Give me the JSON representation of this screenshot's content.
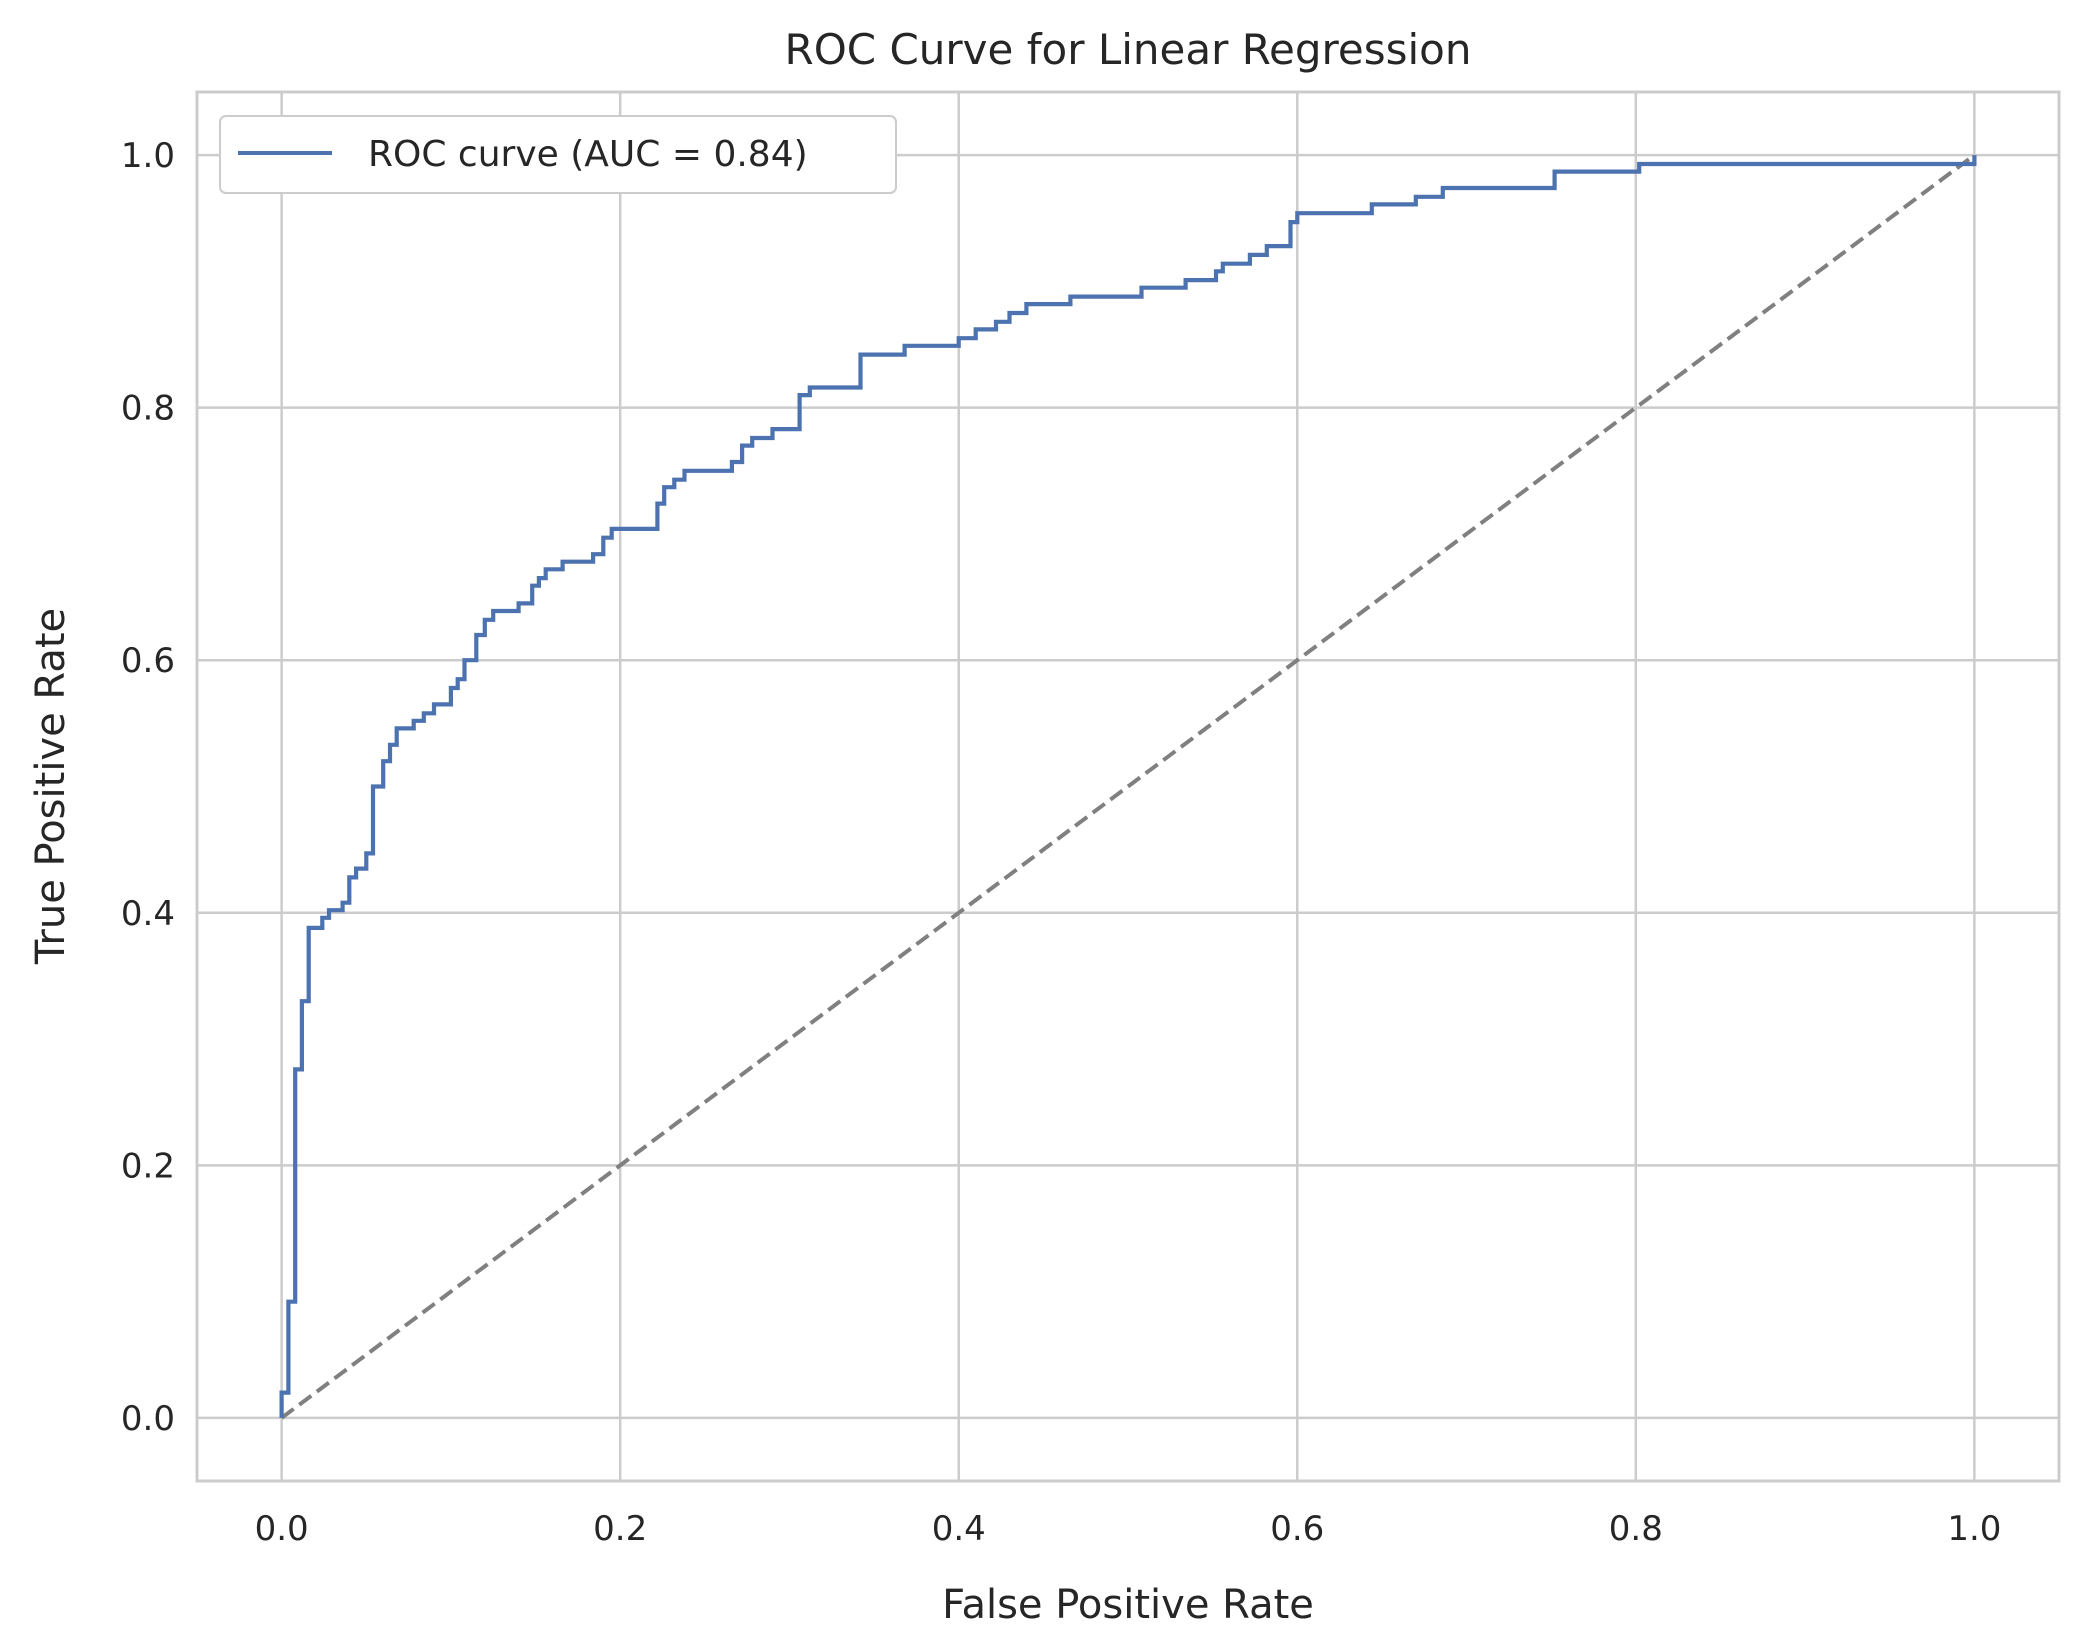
{
  "chart_data": {
    "type": "line",
    "title": "ROC Curve for Linear Regression",
    "xlabel": "False Positive Rate",
    "ylabel": "True Positive Rate",
    "xlim": [
      -0.05,
      1.05
    ],
    "ylim": [
      -0.05,
      1.05
    ],
    "xticks": [
      0.0,
      0.2,
      0.4,
      0.6,
      0.8,
      1.0
    ],
    "yticks": [
      0.0,
      0.2,
      0.4,
      0.6,
      0.8,
      1.0
    ],
    "xtick_labels": [
      "0.0",
      "0.2",
      "0.4",
      "0.6",
      "0.8",
      "1.0"
    ],
    "ytick_labels": [
      "0.0",
      "0.2",
      "0.4",
      "0.6",
      "0.8",
      "1.0"
    ],
    "grid": true,
    "legend": {
      "placement": "upper-left",
      "entries": [
        "ROC curve (AUC = 0.84)"
      ]
    },
    "series": [
      {
        "name": "ROC curve (AUC = 0.84)",
        "color": "#4c72b0",
        "style": "step",
        "points": [
          [
            0.0,
            0.0
          ],
          [
            0.0,
            0.02
          ],
          [
            0.004,
            0.02
          ],
          [
            0.004,
            0.092
          ],
          [
            0.008,
            0.092
          ],
          [
            0.008,
            0.276
          ],
          [
            0.012,
            0.276
          ],
          [
            0.012,
            0.33
          ],
          [
            0.016,
            0.33
          ],
          [
            0.016,
            0.388
          ],
          [
            0.024,
            0.388
          ],
          [
            0.024,
            0.396
          ],
          [
            0.028,
            0.396
          ],
          [
            0.028,
            0.402
          ],
          [
            0.036,
            0.402
          ],
          [
            0.036,
            0.408
          ],
          [
            0.04,
            0.408
          ],
          [
            0.04,
            0.428
          ],
          [
            0.044,
            0.428
          ],
          [
            0.044,
            0.435
          ],
          [
            0.05,
            0.435
          ],
          [
            0.05,
            0.447
          ],
          [
            0.054,
            0.447
          ],
          [
            0.054,
            0.5
          ],
          [
            0.06,
            0.5
          ],
          [
            0.06,
            0.52
          ],
          [
            0.064,
            0.52
          ],
          [
            0.064,
            0.533
          ],
          [
            0.068,
            0.533
          ],
          [
            0.068,
            0.546
          ],
          [
            0.078,
            0.546
          ],
          [
            0.078,
            0.552
          ],
          [
            0.084,
            0.552
          ],
          [
            0.084,
            0.558
          ],
          [
            0.09,
            0.558
          ],
          [
            0.09,
            0.565
          ],
          [
            0.1,
            0.565
          ],
          [
            0.1,
            0.578
          ],
          [
            0.104,
            0.578
          ],
          [
            0.104,
            0.585
          ],
          [
            0.108,
            0.585
          ],
          [
            0.108,
            0.6
          ],
          [
            0.115,
            0.6
          ],
          [
            0.115,
            0.62
          ],
          [
            0.12,
            0.62
          ],
          [
            0.12,
            0.632
          ],
          [
            0.125,
            0.632
          ],
          [
            0.125,
            0.639
          ],
          [
            0.14,
            0.639
          ],
          [
            0.14,
            0.645
          ],
          [
            0.148,
            0.645
          ],
          [
            0.148,
            0.659
          ],
          [
            0.152,
            0.659
          ],
          [
            0.152,
            0.665
          ],
          [
            0.156,
            0.665
          ],
          [
            0.156,
            0.672
          ],
          [
            0.166,
            0.672
          ],
          [
            0.166,
            0.678
          ],
          [
            0.184,
            0.678
          ],
          [
            0.184,
            0.684
          ],
          [
            0.19,
            0.684
          ],
          [
            0.19,
            0.697
          ],
          [
            0.195,
            0.697
          ],
          [
            0.195,
            0.704
          ],
          [
            0.222,
            0.704
          ],
          [
            0.222,
            0.724
          ],
          [
            0.226,
            0.724
          ],
          [
            0.226,
            0.737
          ],
          [
            0.232,
            0.737
          ],
          [
            0.232,
            0.743
          ],
          [
            0.238,
            0.743
          ],
          [
            0.238,
            0.75
          ],
          [
            0.266,
            0.75
          ],
          [
            0.266,
            0.757
          ],
          [
            0.272,
            0.757
          ],
          [
            0.272,
            0.77
          ],
          [
            0.278,
            0.77
          ],
          [
            0.278,
            0.776
          ],
          [
            0.29,
            0.776
          ],
          [
            0.29,
            0.783
          ],
          [
            0.306,
            0.783
          ],
          [
            0.306,
            0.81
          ],
          [
            0.312,
            0.81
          ],
          [
            0.312,
            0.816
          ],
          [
            0.342,
            0.816
          ],
          [
            0.342,
            0.842
          ],
          [
            0.368,
            0.842
          ],
          [
            0.368,
            0.849
          ],
          [
            0.4,
            0.849
          ],
          [
            0.4,
            0.855
          ],
          [
            0.41,
            0.855
          ],
          [
            0.41,
            0.862
          ],
          [
            0.422,
            0.862
          ],
          [
            0.422,
            0.868
          ],
          [
            0.43,
            0.868
          ],
          [
            0.43,
            0.875
          ],
          [
            0.44,
            0.875
          ],
          [
            0.44,
            0.882
          ],
          [
            0.466,
            0.882
          ],
          [
            0.466,
            0.888
          ],
          [
            0.508,
            0.888
          ],
          [
            0.508,
            0.895
          ],
          [
            0.534,
            0.895
          ],
          [
            0.534,
            0.901
          ],
          [
            0.552,
            0.901
          ],
          [
            0.552,
            0.908
          ],
          [
            0.556,
            0.908
          ],
          [
            0.556,
            0.914
          ],
          [
            0.572,
            0.914
          ],
          [
            0.572,
            0.921
          ],
          [
            0.582,
            0.921
          ],
          [
            0.582,
            0.928
          ],
          [
            0.596,
            0.928
          ],
          [
            0.596,
            0.947
          ],
          [
            0.6,
            0.947
          ],
          [
            0.6,
            0.954
          ],
          [
            0.644,
            0.954
          ],
          [
            0.644,
            0.961
          ],
          [
            0.67,
            0.961
          ],
          [
            0.67,
            0.967
          ],
          [
            0.686,
            0.967
          ],
          [
            0.686,
            0.974
          ],
          [
            0.752,
            0.974
          ],
          [
            0.752,
            0.987
          ],
          [
            0.802,
            0.987
          ],
          [
            0.802,
            0.993
          ],
          [
            1.0,
            0.993
          ],
          [
            1.0,
            1.0
          ]
        ]
      },
      {
        "name": "",
        "color": "#808080",
        "style": "dashed",
        "points": [
          [
            0.0,
            0.0
          ],
          [
            1.0,
            1.0
          ]
        ]
      }
    ]
  }
}
